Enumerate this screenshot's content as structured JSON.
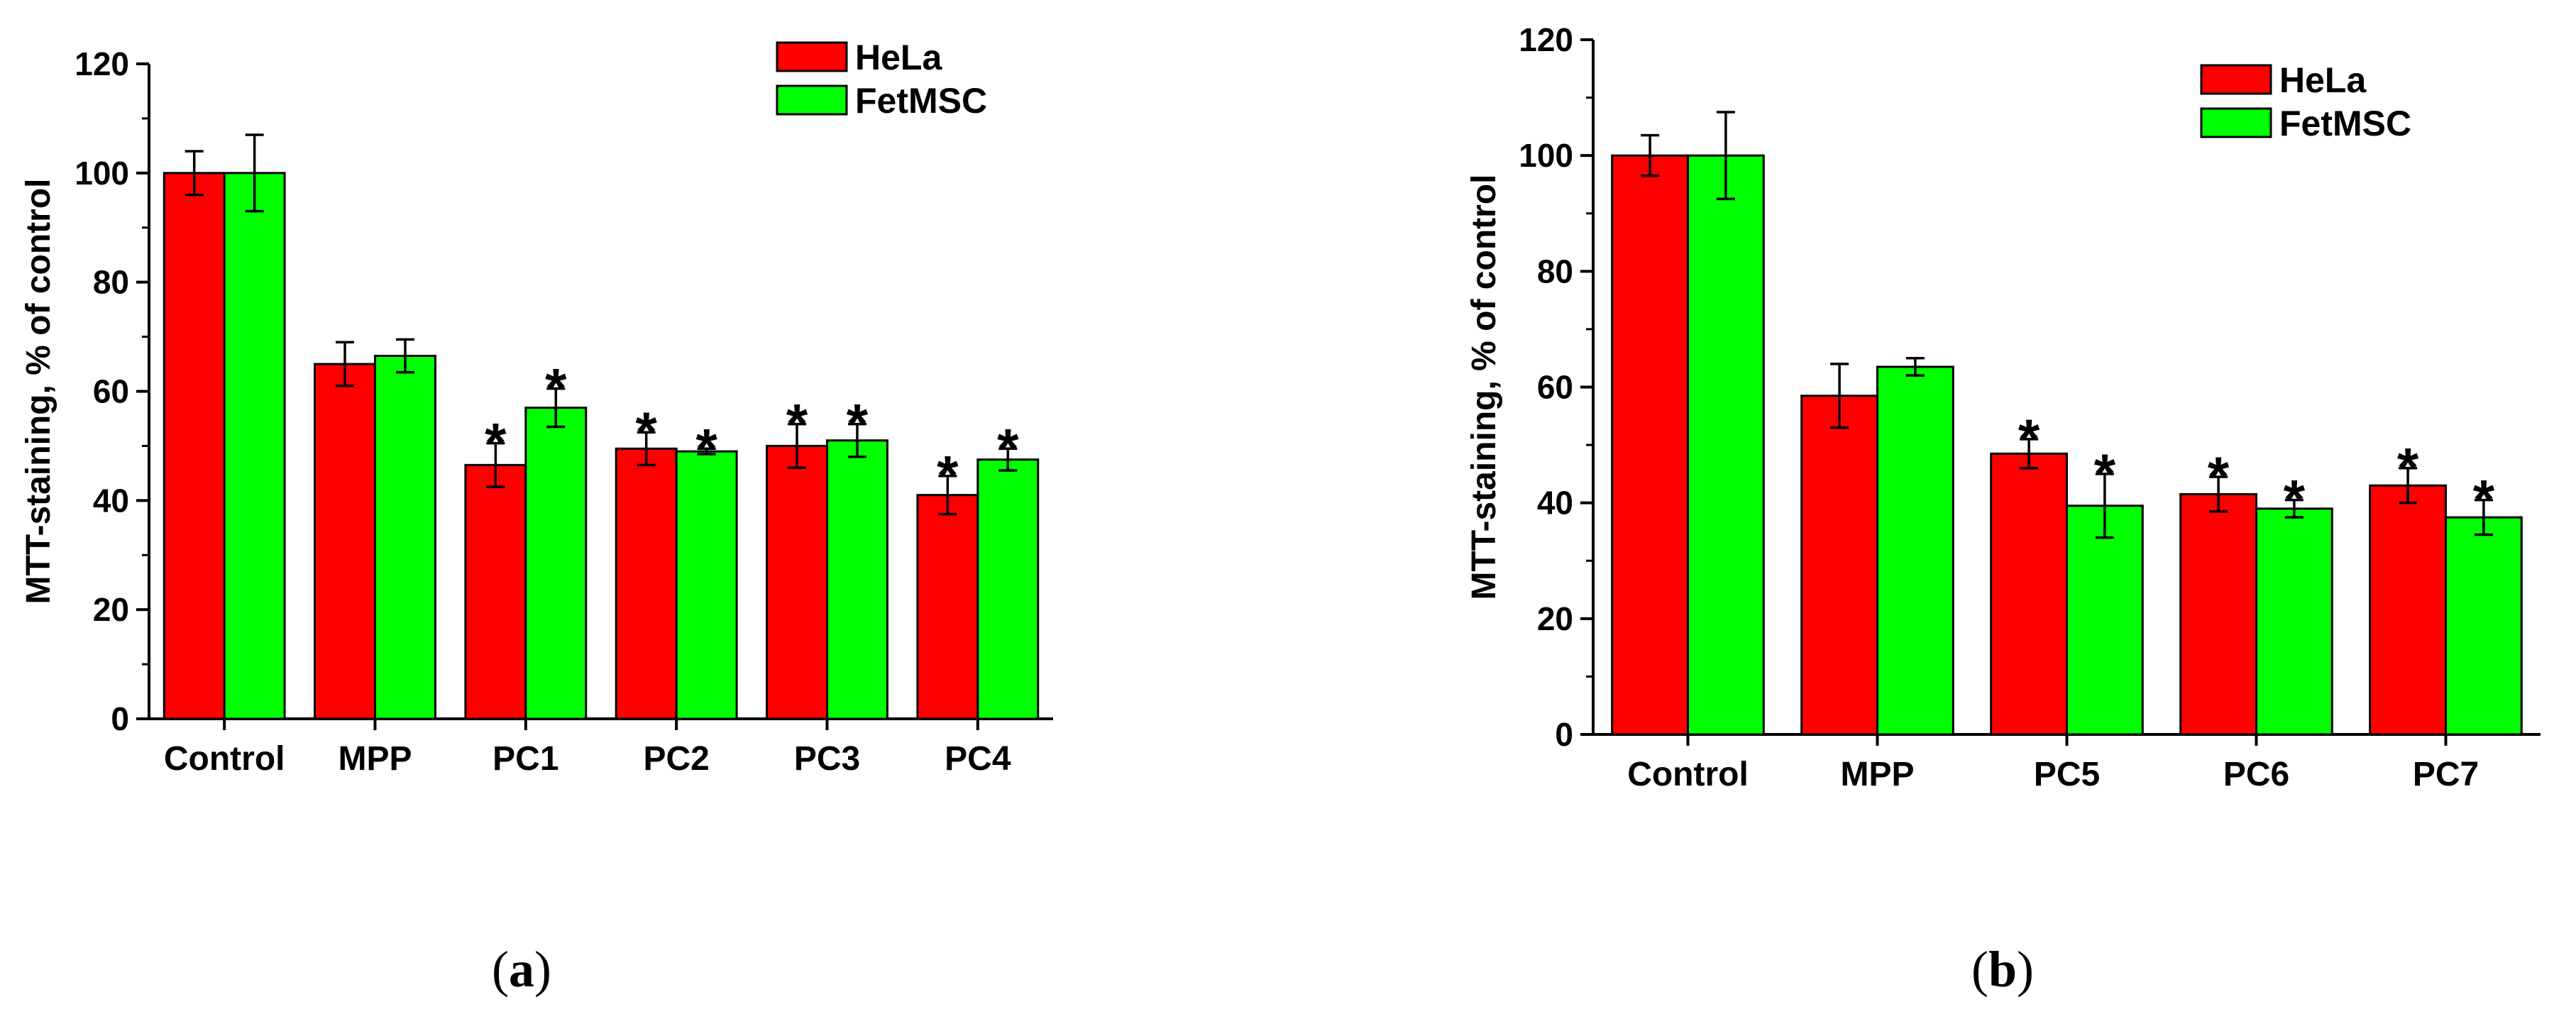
{
  "colors": {
    "hela": "#ff0000",
    "fetmsc": "#00ff00",
    "axis": "#000000"
  },
  "chart_data": [
    {
      "type": "bar",
      "panel_label": "a",
      "title": "",
      "xlabel": "",
      "ylabel": "MTT-staining, % of control",
      "ylim": [
        0,
        120
      ],
      "yticks": [
        0,
        20,
        40,
        60,
        80,
        100,
        120
      ],
      "categories": [
        "Control",
        "MPP",
        "PC1",
        "PC2",
        "PC3",
        "PC4"
      ],
      "legend_position": "top-right",
      "series": [
        {
          "name": "HeLa",
          "color": "#ff0000",
          "values": [
            100,
            65,
            46.5,
            49.5,
            50,
            41
          ],
          "errors": [
            4,
            4,
            4,
            3,
            4,
            3.5
          ],
          "significant": [
            false,
            false,
            true,
            true,
            true,
            true
          ]
        },
        {
          "name": "FetMSC",
          "color": "#00ff00",
          "values": [
            100,
            66.5,
            57,
            49,
            51,
            47.5
          ],
          "errors": [
            7,
            3,
            3.5,
            0.5,
            3,
            2
          ],
          "significant": [
            false,
            false,
            true,
            true,
            true,
            true
          ]
        }
      ],
      "significance_marker": "*"
    },
    {
      "type": "bar",
      "panel_label": "b",
      "title": "",
      "xlabel": "",
      "ylabel": "MTT-staining, % of control",
      "ylim": [
        0,
        120
      ],
      "yticks": [
        0,
        20,
        40,
        60,
        80,
        100,
        120
      ],
      "categories": [
        "Control",
        "MPP",
        "PC5",
        "PC6",
        "PC7"
      ],
      "legend_position": "top-right",
      "series": [
        {
          "name": "HeLa",
          "color": "#ff0000",
          "values": [
            100,
            58.5,
            48.5,
            41.5,
            43
          ],
          "errors": [
            3.5,
            5.5,
            2.5,
            3,
            3
          ],
          "significant": [
            false,
            false,
            true,
            true,
            true
          ]
        },
        {
          "name": "FetMSC",
          "color": "#00ff00",
          "values": [
            100,
            63.5,
            39.5,
            39,
            37.5
          ],
          "errors": [
            7.5,
            1.5,
            5.5,
            1.5,
            3
          ],
          "significant": [
            false,
            false,
            true,
            true,
            true
          ]
        }
      ],
      "significance_marker": "*"
    }
  ]
}
